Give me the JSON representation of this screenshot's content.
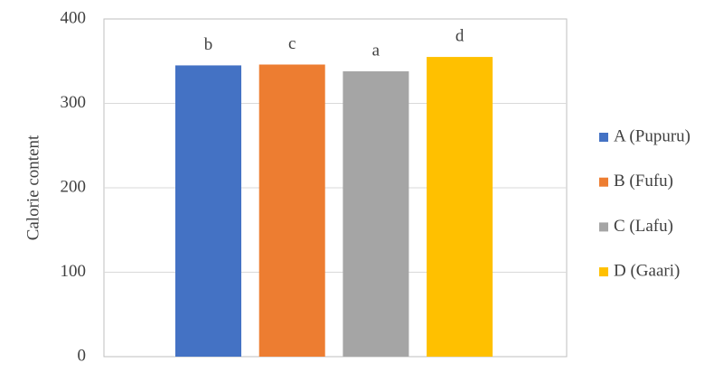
{
  "chart_data": {
    "type": "bar",
    "y_label": "Calorie content",
    "categories": [
      null
    ],
    "series": [
      {
        "name": "A (Pupuru)",
        "color": "#4472c4",
        "values": [
          345
        ]
      },
      {
        "name": "B (Fufu)",
        "color": "#ed7d31",
        "values": [
          346
        ]
      },
      {
        "name": "C (Lafu)",
        "color": "#a5a5a5",
        "values": [
          338
        ]
      },
      {
        "name": "D (Gaari)",
        "color": "#ffc000",
        "values": [
          355
        ]
      }
    ],
    "annotations": [
      "b",
      "c",
      "a",
      "d"
    ],
    "ylim": [
      0,
      400
    ],
    "yticks": [
      0,
      100,
      200,
      300,
      400
    ],
    "grid": true,
    "legend": "right"
  }
}
